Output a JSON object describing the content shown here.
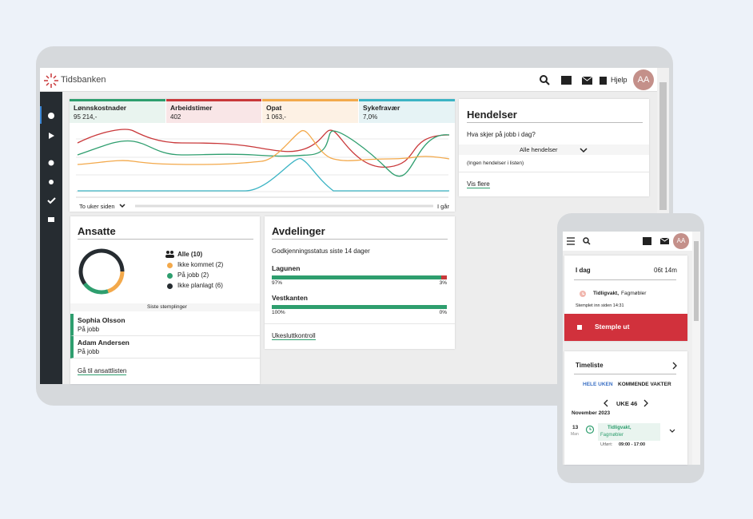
{
  "header": {
    "logo": "Tidsbanken",
    "help": "Hjelp",
    "avatar": "AA"
  },
  "kpis": [
    {
      "label": "Lønnskostnader",
      "value": "95 214,-"
    },
    {
      "label": "Arbeidstimer",
      "value": "402"
    },
    {
      "label": "Opat",
      "value": "1 063,-"
    },
    {
      "label": "Sykefravær",
      "value": "7,0%"
    }
  ],
  "chart": {
    "range_start": "To uker siden",
    "range_end": "I går"
  },
  "events": {
    "title": "Hendelser",
    "question": "Hva skjer på jobb i dag?",
    "filter": "Alle hendelser",
    "empty": "(Ingen hendelser i listen)",
    "link": "Vis flere"
  },
  "employees": {
    "title": "Ansatte",
    "total": "Alle (10)",
    "legend": [
      {
        "label": "Ikke kommet (2)",
        "value": 2,
        "color": "#f3a94b"
      },
      {
        "label": "På jobb (2)",
        "value": 2,
        "color": "#2e9e6e"
      },
      {
        "label": "Ikke planlagt (6)",
        "value": 6,
        "color": "#262c31"
      }
    ],
    "recent_title": "Siste stemplinger",
    "recent": [
      {
        "name": "Sophia Olsson",
        "status": "På jobb"
      },
      {
        "name": "Adam Andersen",
        "status": "På jobb"
      }
    ],
    "link": "Gå til ansattlisten"
  },
  "departments": {
    "title": "Avdelinger",
    "subtitle": "Godkjenningsstatus siste 14 dager",
    "items": [
      {
        "name": "Lagunen",
        "approved": {
          "value": 97,
          "label": "97%"
        },
        "rejected": {
          "value": 3,
          "label": "3%"
        }
      },
      {
        "name": "Vestkanten",
        "approved": {
          "value": 100,
          "label": "100%"
        },
        "rejected": {
          "value": 0,
          "label": "0%"
        }
      }
    ],
    "link": "Ukesluttkontroll"
  },
  "mobile": {
    "avatar": "AA",
    "today": {
      "title": "I dag",
      "duration": "06t 14m",
      "shift": "Tidligvakt,",
      "place": "Fagmøbler",
      "since": "Stemplet inn siden 14:31",
      "button": "Stemple ut"
    },
    "timesheet": {
      "title": "Timeliste",
      "tabs": [
        "HELE UKEN",
        "KOMMENDE VAKTER"
      ],
      "week": "UKE 46",
      "month": "November 2023",
      "day": "13",
      "weekday": "Man",
      "shift": "Tidligvakt,",
      "place": "Fagmøbler",
      "done": "Utført:",
      "time": "09:00 - 17:00"
    }
  }
}
